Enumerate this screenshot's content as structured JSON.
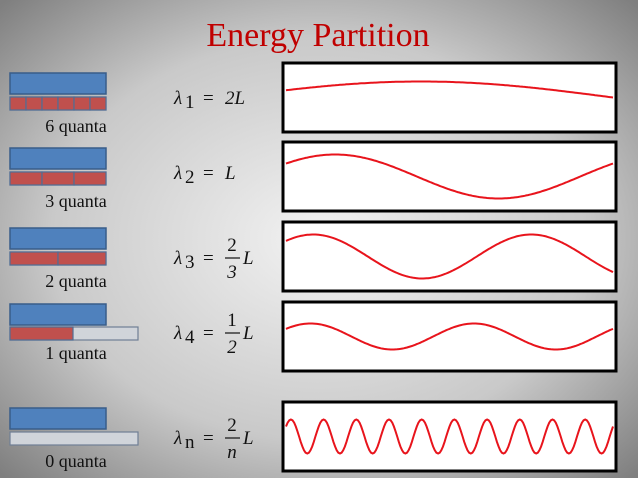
{
  "title": "Energy Partition",
  "rows": [
    {
      "label": "6 quanta",
      "equation": {
        "symbol": "λ",
        "subscript": "1",
        "equals": "=",
        "rhs": "2L"
      }
    },
    {
      "label": "3 quanta",
      "equation": {
        "symbol": "λ",
        "subscript": "2",
        "equals": "=",
        "rhs": "L"
      }
    },
    {
      "label": "2 quanta",
      "equation": {
        "symbol": "λ",
        "subscript": "3",
        "equals": "=",
        "numerator": "2",
        "denominator": "3",
        "tail": "L"
      }
    },
    {
      "label": "1 quanta",
      "equation": {
        "symbol": "λ",
        "subscript": "4",
        "equals": "=",
        "numerator": "1",
        "denominator": "2",
        "tail": "L"
      }
    },
    {
      "label": "0 quanta",
      "equation": {
        "symbol": "λ",
        "subscript": "n",
        "equals": "=",
        "numerator": "2",
        "denominator": "n",
        "tail": "L"
      }
    }
  ]
}
